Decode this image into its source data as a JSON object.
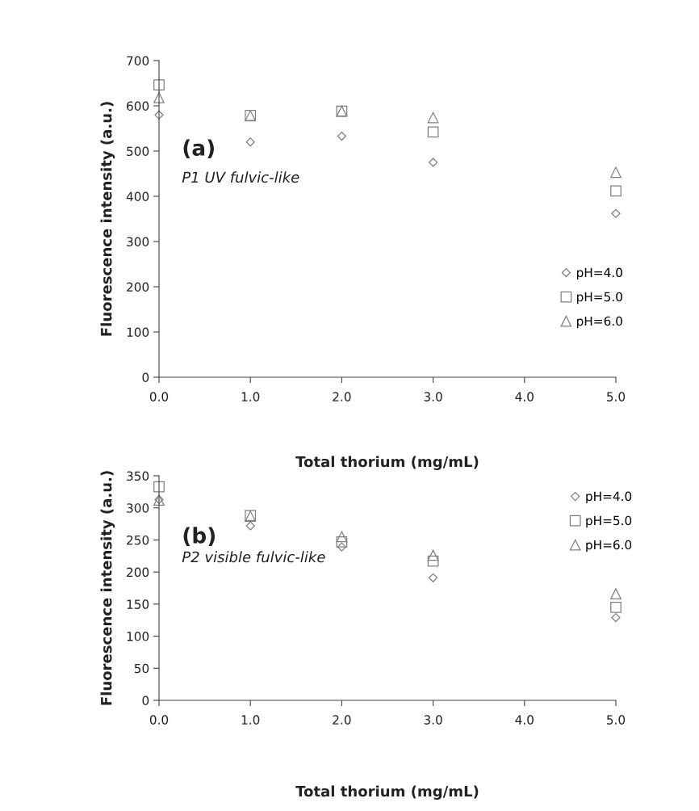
{
  "chart_data": [
    {
      "type": "scatter",
      "xlabel": "Total thorium (mg/mL)",
      "ylabel": "Fluorescence intensity (a.u.)",
      "annotations": [
        "(a)",
        "P1 UV fulvic-like"
      ],
      "x": [
        0,
        1,
        2,
        3,
        5
      ],
      "xlim": [
        0,
        5
      ],
      "xticks": [
        {
          "value": 0,
          "label": "0.0"
        },
        {
          "value": 1,
          "label": "1.0"
        },
        {
          "value": 2,
          "label": "2.0"
        },
        {
          "value": 3,
          "label": "3.0"
        },
        {
          "value": 4,
          "label": "4.0"
        },
        {
          "value": 5,
          "label": "5.0"
        }
      ],
      "ylim": [
        0,
        700
      ],
      "yticks": [
        0,
        100,
        200,
        300,
        400,
        500,
        600,
        700
      ],
      "grid": false,
      "legend": "bottom right",
      "series": [
        {
          "name": "pH=4.0",
          "color": "#808080",
          "marker": "diamond",
          "values": [
            580,
            520,
            533,
            475,
            362
          ]
        },
        {
          "name": "pH=5.0",
          "color": "#808080",
          "marker": "square",
          "values": [
            646,
            579,
            588,
            542,
            412
          ]
        },
        {
          "name": "pH=6.0",
          "color": "#808080",
          "marker": "triangle",
          "values": [
            618,
            578,
            588,
            574,
            453
          ]
        }
      ]
    },
    {
      "type": "scatter",
      "xlabel": "Total thorium (mg/mL)",
      "ylabel": "Fluorescence intensity (a.u.)",
      "annotations": [
        "(b)",
        "P2 visible fulvic-like"
      ],
      "x": [
        0,
        1,
        2,
        3,
        5
      ],
      "xlim": [
        0,
        5
      ],
      "xticks": [
        {
          "value": 0,
          "label": "0.0"
        },
        {
          "value": 1,
          "label": "1.0"
        },
        {
          "value": 2,
          "label": "2.0"
        },
        {
          "value": 3,
          "label": "3.0"
        },
        {
          "value": 4,
          "label": "4.0"
        },
        {
          "value": 5,
          "label": "5.0"
        }
      ],
      "ylim": [
        0,
        350
      ],
      "yticks": [
        0,
        50,
        100,
        150,
        200,
        250,
        300,
        350
      ],
      "grid": false,
      "legend": "top right",
      "series": [
        {
          "name": "pH=4.0",
          "color": "#808080",
          "marker": "diamond",
          "values": [
            313,
            272,
            239,
            191,
            129
          ]
        },
        {
          "name": "pH=5.0",
          "color": "#808080",
          "marker": "square",
          "values": [
            333,
            288,
            247,
            217,
            145
          ]
        },
        {
          "name": "pH=6.0",
          "color": "#808080",
          "marker": "triangle",
          "values": [
            312,
            287,
            255,
            226,
            166
          ]
        }
      ]
    }
  ]
}
